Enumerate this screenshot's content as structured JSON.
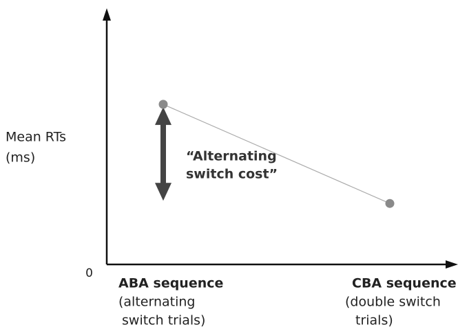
{
  "chart_data": {
    "type": "line",
    "y_label": [
      "Mean RTs",
      "(ms)"
    ],
    "categories": [
      "ABA sequence",
      "CBA sequence"
    ],
    "category_notes": [
      [
        "(alternating",
        "switch trials)"
      ],
      [
        "(double switch",
        "trials)"
      ]
    ],
    "series": [
      {
        "color": "#8a8a8a",
        "values": [
          63,
          24
        ]
      }
    ],
    "ylim": [
      0,
      100
    ],
    "yticks": [
      0
    ],
    "annotation": [
      "“Alternating",
      "switch cost”"
    ]
  }
}
